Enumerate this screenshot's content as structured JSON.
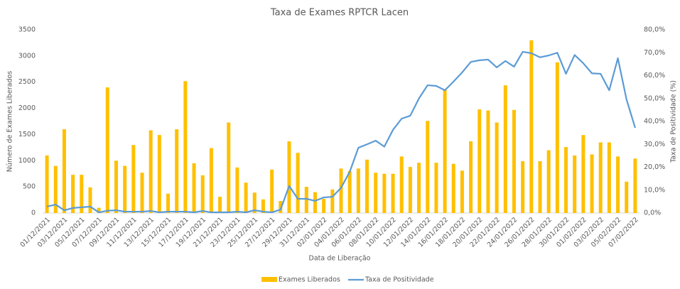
{
  "chart_data": {
    "type": "bar-line",
    "title": "Taxa de Exames RPTCR Lacen",
    "x_label": "Data de Liberação",
    "y_label": "Número de Exames Liberados",
    "y2_label": "Taxa de Positividade (%)",
    "categories": [
      "01/12/2021",
      null,
      "03/12/2021",
      null,
      "05/12/2021",
      null,
      "07/12/2021",
      null,
      "09/12/2021",
      null,
      "11/12/2021",
      null,
      "13/12/2021",
      null,
      "15/12/2021",
      null,
      "17/12/2021",
      null,
      "19/12/2021",
      null,
      "21/12/2021",
      null,
      "23/12/2021",
      null,
      "25/12/2021",
      null,
      "27/12/2021",
      null,
      "29/12/2021",
      null,
      "31/12/2021",
      null,
      "02/01/2022",
      null,
      "04/01/2022",
      null,
      "06/01/2022",
      null,
      "08/01/2022",
      null,
      "10/01/2022",
      null,
      "12/01/2022",
      null,
      "14/01/2022",
      null,
      "16/01/2022",
      null,
      "18/01/2022",
      null,
      "20/01/2022",
      null,
      "22/01/2022",
      null,
      "24/01/2022",
      null,
      "26/01/2022",
      null,
      "28/01/2022",
      null,
      "30/01/2022",
      null,
      "01/02/2022",
      null,
      "03/02/2022",
      null,
      "05/02/2022",
      null,
      "07/02/2022"
    ],
    "series": [
      {
        "name": "Exames Liberados",
        "type": "bar",
        "color": "#FFC000",
        "values": [
          1100,
          900,
          1600,
          730,
          730,
          490,
          100,
          2400,
          1000,
          900,
          1300,
          770,
          1580,
          1490,
          370,
          1600,
          2520,
          950,
          720,
          1240,
          310,
          1730,
          870,
          580,
          390,
          260,
          830,
          230,
          1370,
          1150,
          500,
          400,
          270,
          450,
          850,
          800,
          850,
          1020,
          770,
          750,
          750,
          1080,
          880,
          960,
          1760,
          960,
          2370,
          940,
          810,
          1370,
          1980,
          1960,
          1730,
          2440,
          1970,
          990,
          3300,
          990,
          1200,
          2880,
          1260,
          1100,
          1490,
          1120,
          1350,
          1350,
          1080,
          600,
          1040
        ]
      },
      {
        "name": "Taxa de Positividade",
        "type": "line",
        "axis": "y2",
        "color": "#5B9BD5",
        "values": [
          2.8,
          3.7,
          1.2,
          2.2,
          2.5,
          2.8,
          0.3,
          1,
          1.2,
          0.6,
          0.6,
          0.6,
          0.9,
          0.3,
          0.6,
          0.6,
          0.6,
          0.3,
          0.9,
          0.3,
          0.3,
          0.3,
          0.6,
          0.3,
          1.2,
          0.6,
          0.3,
          1.5,
          11.8,
          6.2,
          6.2,
          5.3,
          6.8,
          7.1,
          11,
          18,
          28.5,
          30,
          31.6,
          29,
          36.3,
          41.2,
          42.5,
          50,
          55.8,
          55.5,
          53.6,
          57.4,
          61.4,
          66,
          66.7,
          67,
          63.6,
          66.4,
          63.9,
          70.4,
          69.8,
          68,
          68.8,
          70,
          60.8,
          69,
          65.4,
          61,
          60.8,
          53.6,
          67.6,
          49.6,
          37.2
        ]
      }
    ],
    "ylim": [
      0,
      3500
    ],
    "yticks": [
      0,
      500,
      1000,
      1500,
      2000,
      2500,
      3000,
      3500
    ],
    "y2lim": [
      0,
      80
    ],
    "y2ticks": [
      {
        "value": 0,
        "label": "0,0%"
      },
      {
        "value": 10,
        "label": "10,0%"
      },
      {
        "value": 20,
        "label": "20,0%"
      },
      {
        "value": 30,
        "label": "30,0%"
      },
      {
        "value": 40,
        "label": "40,0%"
      },
      {
        "value": 50,
        "label": "50,0%"
      },
      {
        "value": 60,
        "label": "60,0%"
      },
      {
        "value": 70,
        "label": "70,0%"
      },
      {
        "value": 80,
        "label": "80,0%"
      }
    ],
    "legend": "bottom"
  }
}
